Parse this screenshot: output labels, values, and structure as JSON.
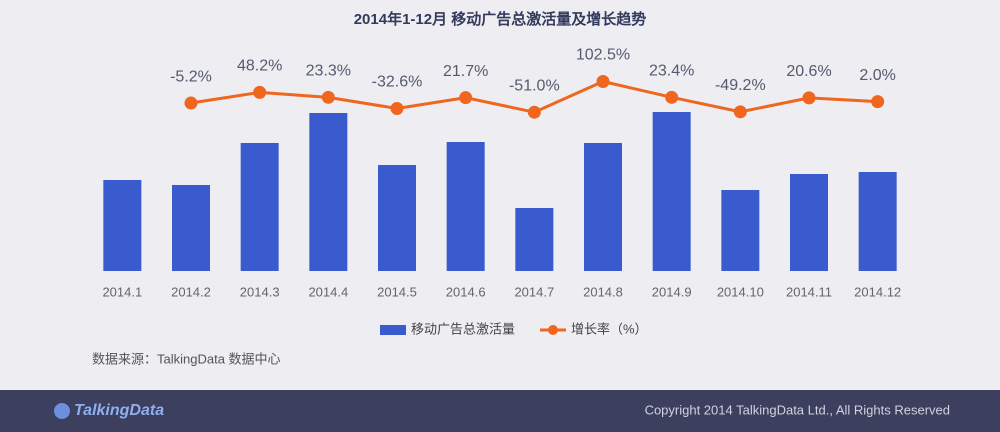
{
  "chart_data": {
    "type": "bar_line",
    "title": "2014年1-12月 移动广告总激活量及增长趋势",
    "categories": [
      "2014.1",
      "2014.2",
      "2014.3",
      "2014.4",
      "2014.5",
      "2014.6",
      "2014.7",
      "2014.8",
      "2014.9",
      "2014.10",
      "2014.11",
      "2014.12"
    ],
    "series": [
      {
        "name": "移动广告总激活量",
        "color": "#3a5bcd",
        "values": [
          91,
          86,
          128,
          158,
          106,
          129,
          63,
          128,
          159,
          81,
          97,
          99
        ]
      },
      {
        "name": "增长率（%）",
        "color": "#f0661e",
        "axis": "y2",
        "values": [
          null,
          -5.2,
          48.2,
          23.3,
          -32.6,
          21.7,
          -51.0,
          102.5,
          23.4,
          -49.2,
          20.6,
          2.0
        ],
        "value_labels": [
          null,
          "-5.2%",
          "48.2%",
          "23.3%",
          "-32.6%",
          "21.7%",
          "-51.0%",
          "102.5%",
          "23.4%",
          "-49.2%",
          "20.6%",
          "2.0%"
        ]
      }
    ],
    "ylim": [
      0,
      211
    ],
    "y2lim": [
      -845,
      210
    ]
  },
  "source": "数据来源：TalkingData 数据中心",
  "footer": {
    "logo": "TalkingData",
    "copyright": "Copyright 2014 TalkingData Ltd., All Rights Reserved"
  }
}
